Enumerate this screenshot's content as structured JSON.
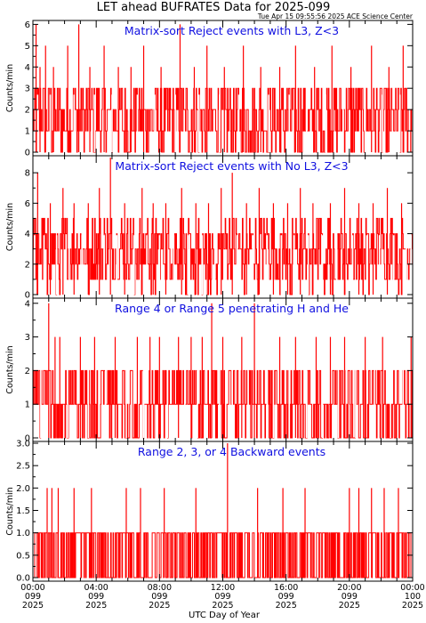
{
  "title": "LET ahead BUFRATES Data for 2025-099",
  "timestamp": "Tue Apr 15 09:55:56 2025 ACE Science Center",
  "x_axis_label": "UTC Day of Year",
  "colors": {
    "trace": "#ff0000",
    "panel_title": "#1010e0",
    "axes": "#000000"
  },
  "chart_data": [
    {
      "type": "line",
      "title": "Matrix-sort Reject events with L3, Z<3",
      "ylabel": "Counts/min",
      "ylim": [
        0,
        6.1
      ],
      "yticks": [
        "0",
        "1",
        "2",
        "3",
        "4",
        "5",
        "6"
      ],
      "x_range_hours": [
        0,
        24
      ],
      "baseline": 1.5,
      "series": [
        {
          "spikes": [
            [
              0.2,
              6
            ],
            [
              0.45,
              4
            ],
            [
              0.8,
              5
            ],
            [
              1.3,
              4
            ],
            [
              2.2,
              5
            ],
            [
              2.9,
              6
            ],
            [
              3.6,
              4
            ],
            [
              4.5,
              5
            ],
            [
              5.4,
              4
            ],
            [
              6.2,
              4
            ],
            [
              7.0,
              5
            ],
            [
              8.1,
              4
            ],
            [
              9.3,
              6
            ],
            [
              10.2,
              4
            ],
            [
              11.0,
              5
            ],
            [
              12.1,
              4
            ],
            [
              13.3,
              5
            ],
            [
              14.4,
              4
            ],
            [
              15.6,
              4
            ],
            [
              16.6,
              5
            ],
            [
              17.8,
              4
            ],
            [
              18.9,
              5
            ],
            [
              20.1,
              4
            ],
            [
              21.4,
              5
            ],
            [
              22.5,
              4
            ],
            [
              23.4,
              5
            ]
          ],
          "dips": [
            0.3,
            1.1,
            2.6,
            3.9,
            5.0,
            6.6,
            7.7,
            9.0,
            10.5,
            11.8,
            13.0,
            14.9,
            16.2,
            17.3,
            18.5,
            19.6,
            21.0,
            22.1,
            23.2,
            23.8
          ]
        }
      ]
    },
    {
      "type": "line",
      "title": "Matrix-sort Reject events with No L3, Z<3",
      "ylabel": "Counts/min",
      "ylim": [
        0,
        9
      ],
      "yticks": [
        "0",
        "2",
        "4",
        "6",
        "8"
      ],
      "x_range_hours": [
        0,
        24
      ],
      "baseline": 2.7,
      "series": [
        {
          "spikes": [
            [
              0.3,
              8
            ],
            [
              1.1,
              6
            ],
            [
              1.9,
              7
            ],
            [
              2.6,
              6
            ],
            [
              3.5,
              6
            ],
            [
              4.2,
              7
            ],
            [
              4.9,
              9
            ],
            [
              5.8,
              6
            ],
            [
              6.9,
              7
            ],
            [
              7.6,
              6
            ],
            [
              8.4,
              6
            ],
            [
              9.4,
              7
            ],
            [
              10.3,
              6
            ],
            [
              11.1,
              6
            ],
            [
              11.9,
              7
            ],
            [
              12.6,
              8
            ],
            [
              13.5,
              6
            ],
            [
              14.3,
              7
            ],
            [
              15.2,
              6
            ],
            [
              16.1,
              6
            ],
            [
              16.9,
              7
            ],
            [
              17.7,
              6
            ],
            [
              18.8,
              6
            ],
            [
              19.7,
              7
            ],
            [
              20.6,
              6
            ],
            [
              21.5,
              6
            ],
            [
              22.4,
              7
            ],
            [
              23.3,
              6
            ]
          ],
          "dips": [
            0.1,
            0.7,
            1.5,
            2.3,
            3.1,
            4.5,
            5.3,
            6.4,
            7.2,
            8.0,
            8.9,
            9.8,
            10.7,
            11.5,
            12.9,
            13.9,
            14.8,
            15.7,
            16.5,
            17.4,
            18.3,
            19.2,
            20.2,
            21.1,
            21.9,
            22.8,
            23.6,
            23.9
          ]
        }
      ]
    },
    {
      "type": "line",
      "title": "Range 4 or Range 5 penetrating H and He",
      "ylabel": "Counts/min",
      "ylim": [
        0,
        4.1
      ],
      "yticks": [
        "0",
        "1",
        "2",
        "3",
        "4"
      ],
      "x_range_hours": [
        0,
        24
      ],
      "baseline": 1.0,
      "series": [
        {
          "spikes": [
            [
              1.0,
              4
            ],
            [
              1.4,
              3
            ],
            [
              1.7,
              3
            ],
            [
              3.0,
              3
            ],
            [
              3.9,
              3
            ],
            [
              5.2,
              3
            ],
            [
              6.6,
              3
            ],
            [
              7.4,
              3
            ],
            [
              8.0,
              3
            ],
            [
              9.2,
              3
            ],
            [
              10.0,
              3
            ],
            [
              10.7,
              3
            ],
            [
              11.3,
              4
            ],
            [
              12.0,
              3
            ],
            [
              13.2,
              3
            ],
            [
              14.0,
              4
            ],
            [
              15.6,
              3
            ],
            [
              16.6,
              3
            ],
            [
              17.9,
              3
            ],
            [
              18.8,
              3
            ],
            [
              19.7,
              3
            ],
            [
              21.0,
              3
            ],
            [
              22.1,
              3
            ],
            [
              23.9,
              3
            ]
          ],
          "dips": [
            0.5,
            2.2,
            3.5,
            4.6,
            5.9,
            7.0,
            8.5,
            9.6,
            10.4,
            11.8,
            12.6,
            13.6,
            14.8,
            15.2,
            16.2,
            17.3,
            18.3,
            19.3,
            20.4,
            21.6,
            22.6,
            23.4
          ]
        }
      ]
    },
    {
      "type": "line",
      "title": "Range 2, 3, or 4 Backward events",
      "ylabel": "Counts/min",
      "ylim": [
        0,
        3.0
      ],
      "yticks": [
        "0.0",
        "0.5",
        "1.0",
        "1.5",
        "2.0",
        "2.5",
        "3.0"
      ],
      "x_range_hours": [
        0,
        24
      ],
      "baseline": 0.4,
      "series": [
        {
          "spikes": [
            [
              0.9,
              2
            ],
            [
              1.2,
              2
            ],
            [
              1.6,
              2
            ],
            [
              2.6,
              2
            ],
            [
              3.7,
              2
            ],
            [
              5.9,
              2
            ],
            [
              6.8,
              2
            ],
            [
              8.3,
              2
            ],
            [
              10.3,
              2
            ],
            [
              12.3,
              3
            ],
            [
              14.2,
              2
            ],
            [
              15.8,
              2
            ],
            [
              17.2,
              2
            ],
            [
              20.0,
              2
            ],
            [
              20.6,
              2
            ],
            [
              21.4,
              2
            ],
            [
              22.2,
              2
            ],
            [
              23.1,
              2
            ]
          ],
          "dips": [],
          "ones_density": 0.55
        }
      ]
    }
  ],
  "x_ticks": [
    {
      "time": "00:00",
      "doy": "099",
      "year": "2025"
    },
    {
      "time": "04:00",
      "doy": "099",
      "year": "2025"
    },
    {
      "time": "08:00",
      "doy": "099",
      "year": "2025"
    },
    {
      "time": "12:00",
      "doy": "099",
      "year": "2025"
    },
    {
      "time": "16:00",
      "doy": "099",
      "year": "2025"
    },
    {
      "time": "20:00",
      "doy": "099",
      "year": "2025"
    },
    {
      "time": "00:00",
      "doy": "100",
      "year": "2025"
    }
  ]
}
